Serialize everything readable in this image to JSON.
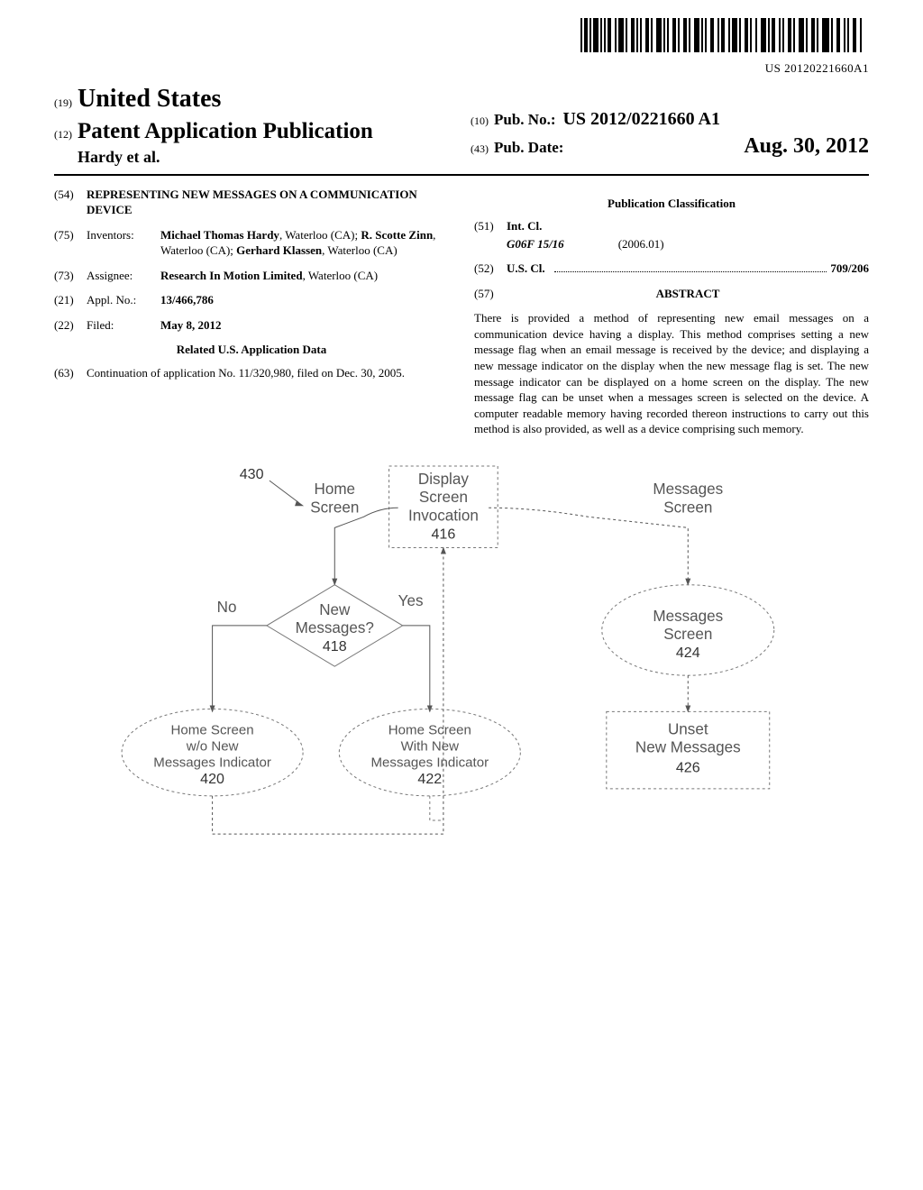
{
  "barcode": {
    "number": "US 20120221660A1"
  },
  "header": {
    "country_code": "(19)",
    "country": "United States",
    "pub_type_code": "(12)",
    "pub_type": "Patent Application Publication",
    "authors": "Hardy et al.",
    "pub_no_code": "(10)",
    "pub_no_label": "Pub. No.:",
    "pub_no_value": "US 2012/0221660 A1",
    "pub_date_code": "(43)",
    "pub_date_label": "Pub. Date:",
    "pub_date_value": "Aug. 30, 2012"
  },
  "fields": {
    "title_code": "(54)",
    "title": "REPRESENTING NEW MESSAGES ON A COMMUNICATION DEVICE",
    "inventors_code": "(75)",
    "inventors_label": "Inventors:",
    "inventors_value_html": "<b>Michael Thomas Hardy</b>, Waterloo (CA); <b>R. Scotte Zinn</b>, Waterloo (CA); <b>Gerhard Klassen</b>, Waterloo (CA)",
    "assignee_code": "(73)",
    "assignee_label": "Assignee:",
    "assignee_value_html": "<b>Research In Motion Limited</b>, Waterloo (CA)",
    "appl_no_code": "(21)",
    "appl_no_label": "Appl. No.:",
    "appl_no_value": "13/466,786",
    "filed_code": "(22)",
    "filed_label": "Filed:",
    "filed_value": "May 8, 2012",
    "related_heading": "Related U.S. Application Data",
    "continuation_code": "(63)",
    "continuation_text": "Continuation of application No. 11/320,980, filed on Dec. 30, 2005.",
    "classification_heading": "Publication Classification",
    "int_cl_code": "(51)",
    "int_cl_label": "Int. Cl.",
    "int_cl_class": "G06F 15/16",
    "int_cl_date": "(2006.01)",
    "us_cl_code": "(52)",
    "us_cl_label": "U.S. Cl.",
    "us_cl_value": "709/206",
    "abstract_code": "(57)",
    "abstract_label": "ABSTRACT",
    "abstract_text": "There is provided a method of representing new email messages on a communication device having a display. This method comprises setting a new message flag when an email message is received by the device; and displaying a new message indicator on the display when the new message flag is set. The new message indicator can be displayed on a home screen on the display. The new message flag can be unset when a messages screen is selected on the device. A computer readable memory having recorded thereon instructions to carry out this method is also provided, as well as a device comprising such memory."
  },
  "diagram": {
    "ref_430": "430",
    "home_screen_label_1": "Home",
    "home_screen_label_2": "Screen",
    "display_box": {
      "l1": "Display",
      "l2": "Screen",
      "l3": "Invocation",
      "num": "416"
    },
    "messages_screen_label_1": "Messages",
    "messages_screen_label_2": "Screen",
    "decision": {
      "l1": "New",
      "l2": "Messages?",
      "num": "418",
      "yes": "Yes",
      "no": "No"
    },
    "messages_node": {
      "l1": "Messages",
      "l2": "Screen",
      "num": "424"
    },
    "home_no": {
      "l1": "Home Screen",
      "l2": "w/o New",
      "l3": "Messages Indicator",
      "num": "420"
    },
    "home_with": {
      "l1": "Home Screen",
      "l2": "With New",
      "l3": "Messages Indicator",
      "num": "422"
    },
    "unset": {
      "l1": "Unset",
      "l2": "New Messages",
      "num": "426"
    }
  }
}
